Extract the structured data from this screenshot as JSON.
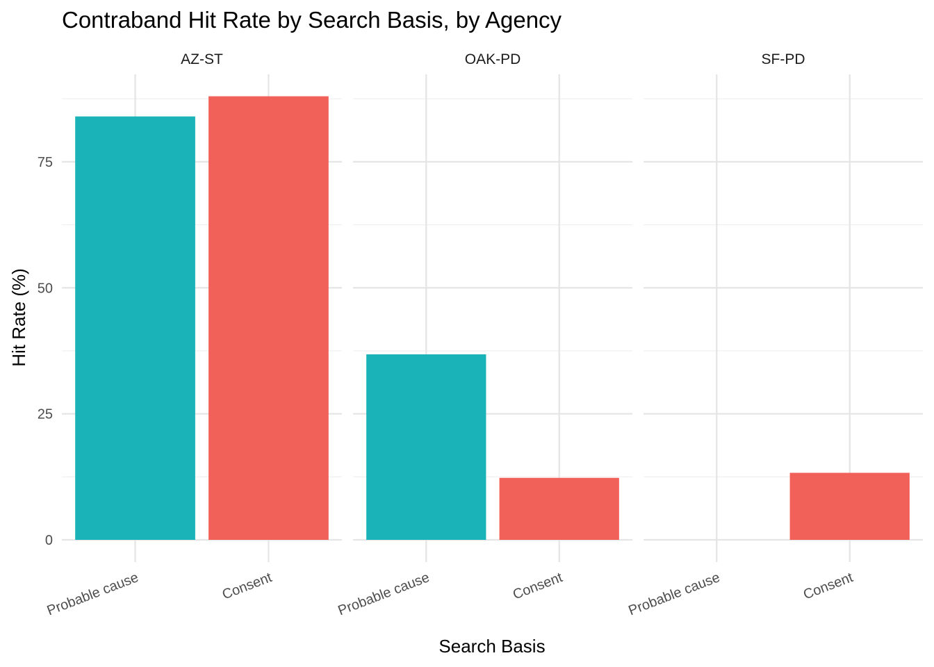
{
  "chart_data": {
    "type": "bar",
    "title": "Contraband Hit Rate by Search Basis, by Agency",
    "xlabel": "Search Basis",
    "ylabel": "Hit Rate (%)",
    "ylim": [
      0,
      90
    ],
    "yticks": [
      0,
      25,
      50,
      75
    ],
    "grid": true,
    "legend": "none",
    "categories": [
      "Probable cause",
      "Consent"
    ],
    "colors": {
      "Probable cause": "#19b3b8",
      "Consent": "#f2605a"
    },
    "panels": [
      {
        "name": "AZ-ST",
        "values": [
          84,
          88
        ]
      },
      {
        "name": "OAK-PD",
        "values": [
          36.8,
          12.3
        ]
      },
      {
        "name": "SF-PD",
        "values": [
          0,
          13.3
        ]
      }
    ]
  }
}
